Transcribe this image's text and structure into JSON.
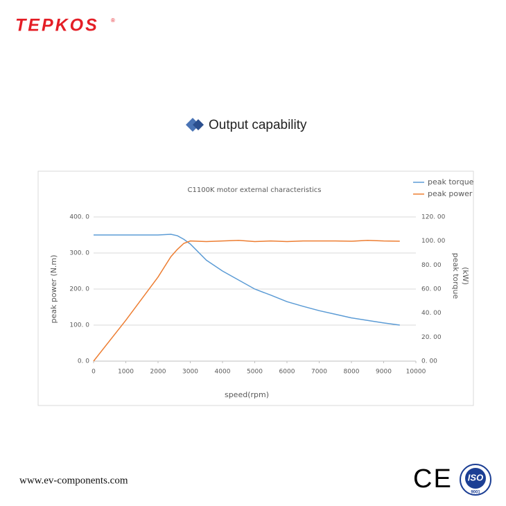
{
  "brand": "TEPKOS",
  "heading": "Output capability",
  "website": "www.ev-components.com",
  "certifications": {
    "ce": "CE",
    "iso": "ISO",
    "iso_standard": "9001"
  },
  "chart_data": {
    "type": "line",
    "title": "C1100K motor  external characteristics",
    "xlabel": "speed(rpm)",
    "ylabel": "peak power (N.m)",
    "y2label": [
      "peak torque",
      "(kW)"
    ],
    "x": [
      0,
      1000,
      2000,
      2400,
      2600,
      2800,
      3000,
      3500,
      4000,
      4500,
      5000,
      5500,
      6000,
      6500,
      7000,
      7500,
      8000,
      8500,
      9000,
      9500
    ],
    "series": [
      {
        "name": "peak torque",
        "color": "#5b9bd5",
        "axis": "y",
        "values": [
          350,
          350,
          350,
          352,
          348,
          338,
          325,
          280,
          250,
          225,
          200,
          183,
          165,
          152,
          140,
          130,
          120,
          113,
          106,
          100
        ]
      },
      {
        "name": "peak power",
        "color": "#ed7d31",
        "axis": "y2",
        "values": [
          0,
          34,
          70,
          87,
          93,
          98,
          100,
          99.5,
          100,
          100.5,
          99.5,
          100,
          99.5,
          100,
          100,
          100,
          99.8,
          100.5,
          100,
          99.8
        ]
      }
    ],
    "xlim": [
      0,
      10000
    ],
    "xticks": [
      0,
      1000,
      2000,
      3000,
      4000,
      5000,
      6000,
      7000,
      8000,
      9000,
      10000
    ],
    "ylim": [
      0,
      400
    ],
    "yticks": [
      {
        "value": 0,
        "label": "0. 0"
      },
      {
        "value": 100,
        "label": "100. 0"
      },
      {
        "value": 200,
        "label": "200. 0"
      },
      {
        "value": 300,
        "label": "300. 0"
      },
      {
        "value": 400,
        "label": "400. 0"
      }
    ],
    "y2lim": [
      0,
      120
    ],
    "y2ticks": [
      {
        "value": 0,
        "label": "0. 00"
      },
      {
        "value": 20,
        "label": "20. 00"
      },
      {
        "value": 40,
        "label": "40. 00"
      },
      {
        "value": 60,
        "label": "60. 00"
      },
      {
        "value": 80,
        "label": "80. 00"
      },
      {
        "value": 100,
        "label": "100. 00"
      },
      {
        "value": 120,
        "label": "120. 00"
      }
    ],
    "grid": true,
    "legend": "upper right"
  }
}
